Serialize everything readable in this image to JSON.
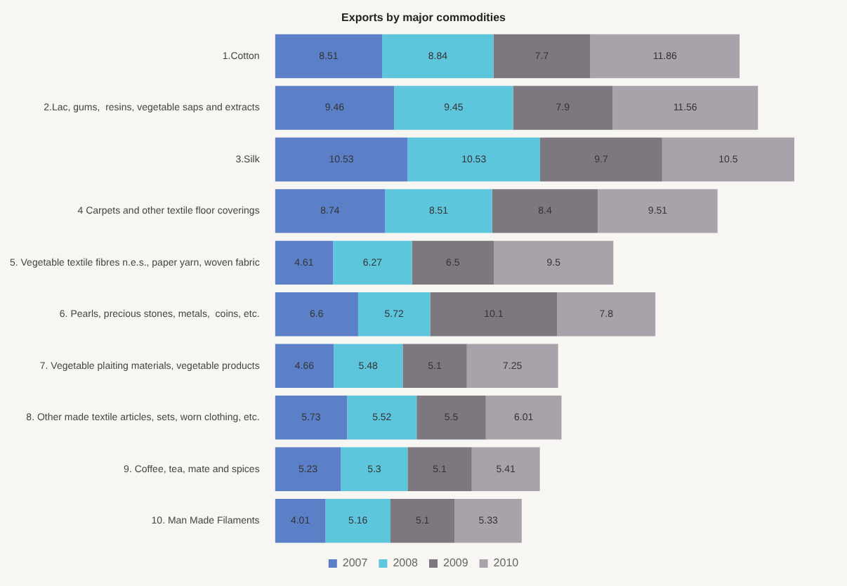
{
  "chart_data": {
    "type": "bar",
    "orientation": "horizontal",
    "stacked": true,
    "title": "Exports by major commodities",
    "categories": [
      "1.Cotton",
      "2.Lac, gums,  resins, vegetable saps and extracts",
      "3.Silk",
      "4 Carpets and other textile floor coverings",
      "5. Vegetable textile fibres n.e.s., paper yarn, woven fabric",
      "6. Pearls, precious stones, metals,  coins, etc.",
      "7. Vegetable plaiting materials, vegetable products",
      "8. Other made textile articles, sets, worn clothing, etc.",
      "9. Coffee, tea, mate and spices",
      "10. Man Made Filaments"
    ],
    "series": [
      {
        "name": "2007",
        "color": "#5b80c8",
        "values": [
          8.51,
          9.46,
          10.53,
          8.74,
          4.61,
          6.6,
          4.66,
          5.73,
          5.23,
          4.01
        ]
      },
      {
        "name": "2008",
        "color": "#5ec6dc",
        "values": [
          8.84,
          9.45,
          10.53,
          8.51,
          6.27,
          5.72,
          5.48,
          5.52,
          5.3,
          5.16
        ]
      },
      {
        "name": "2009",
        "color": "#7d7880",
        "values": [
          7.7,
          7.9,
          9.7,
          8.4,
          6.5,
          10.1,
          5.1,
          5.5,
          5.1,
          5.1
        ]
      },
      {
        "name": "2010",
        "color": "#aaa2aa",
        "values": [
          11.86,
          11.56,
          10.5,
          9.51,
          9.5,
          7.8,
          7.25,
          6.01,
          5.41,
          5.33
        ]
      }
    ],
    "data_labels": true,
    "legend": "bottom"
  }
}
